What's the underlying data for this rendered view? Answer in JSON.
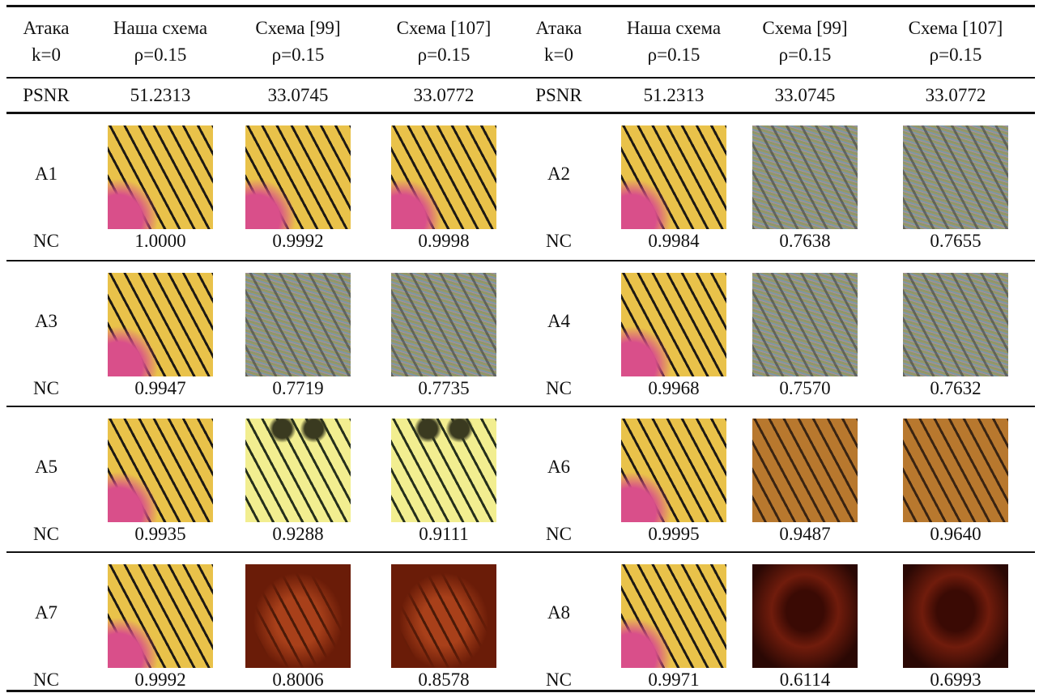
{
  "header": [
    [
      "Атака",
      "k=0"
    ],
    [
      "Наша схема",
      "ρ=0.15"
    ],
    [
      "Схема [99]",
      "ρ=0.15"
    ],
    [
      "Схема [107]",
      "ρ=0.15"
    ],
    [
      "Атака",
      "k=0"
    ],
    [
      "Наша схема",
      "ρ=0.15"
    ],
    [
      "Схема [99]",
      "ρ=0.15"
    ],
    [
      "Схема [107]",
      "ρ=0.15"
    ]
  ],
  "psnr_row": [
    "PSNR",
    "51.2313",
    "33.0745",
    "33.0772",
    "PSNR",
    "51.2313",
    "33.0745",
    "33.0772"
  ],
  "rows": [
    [
      {
        "attack": "A1",
        "metric": "NC",
        "values": [
          "1.0000",
          "0.9992",
          "0.9998"
        ]
      },
      {
        "attack": "A2",
        "metric": "NC",
        "values": [
          "0.9984",
          "0.7638",
          "0.7655"
        ]
      }
    ],
    [
      {
        "attack": "A3",
        "metric": "NC",
        "values": [
          "0.9947",
          "0.7719",
          "0.7735"
        ]
      },
      {
        "attack": "A4",
        "metric": "NC",
        "values": [
          "0.9968",
          "0.7570",
          "0.7632"
        ]
      }
    ],
    [
      {
        "attack": "A5",
        "metric": "NC",
        "values": [
          "0.9935",
          "0.9288",
          "0.9111"
        ]
      },
      {
        "attack": "A6",
        "metric": "NC",
        "values": [
          "0.9995",
          "0.9487",
          "0.9640"
        ]
      }
    ],
    [
      {
        "attack": "A7",
        "metric": "NC",
        "values": [
          "0.9992",
          "0.8006",
          "0.8578"
        ]
      },
      {
        "attack": "A8",
        "metric": "NC",
        "values": [
          "0.9971",
          "0.6114",
          "0.6993"
        ]
      }
    ]
  ]
}
